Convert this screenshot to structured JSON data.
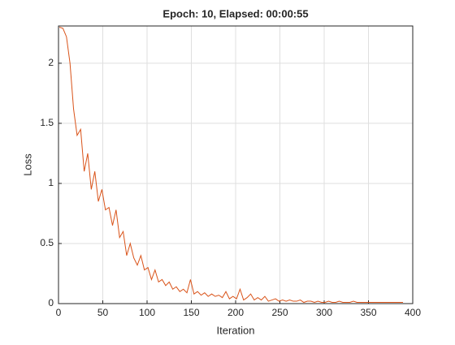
{
  "chart_data": {
    "type": "line",
    "title": "Epoch: 10, Elapsed: 00:00:55",
    "x_label": "Iteration",
    "y_label": "Loss",
    "x": [
      1,
      5,
      9,
      13,
      17,
      21,
      25,
      29,
      33,
      37,
      41,
      45,
      49,
      53,
      57,
      61,
      65,
      69,
      73,
      77,
      81,
      85,
      89,
      93,
      97,
      101,
      105,
      109,
      113,
      117,
      121,
      125,
      129,
      133,
      137,
      141,
      145,
      149,
      153,
      157,
      161,
      165,
      169,
      173,
      177,
      181,
      185,
      189,
      193,
      197,
      201,
      205,
      209,
      213,
      217,
      221,
      225,
      229,
      233,
      237,
      241,
      245,
      249,
      253,
      257,
      261,
      265,
      269,
      273,
      277,
      281,
      285,
      289,
      293,
      297,
      301,
      305,
      309,
      313,
      317,
      321,
      325,
      329,
      333,
      337,
      341,
      345,
      349,
      353,
      357,
      361,
      365,
      369,
      373,
      377,
      381,
      385,
      389
    ],
    "series": [
      {
        "color": "#d95319",
        "values": [
          2.3,
          2.29,
          2.22,
          2.0,
          1.62,
          1.4,
          1.45,
          1.1,
          1.25,
          0.95,
          1.1,
          0.85,
          0.95,
          0.78,
          0.8,
          0.65,
          0.78,
          0.55,
          0.6,
          0.4,
          0.5,
          0.38,
          0.32,
          0.4,
          0.28,
          0.3,
          0.2,
          0.28,
          0.18,
          0.2,
          0.15,
          0.18,
          0.12,
          0.14,
          0.1,
          0.12,
          0.09,
          0.2,
          0.08,
          0.1,
          0.07,
          0.09,
          0.06,
          0.08,
          0.06,
          0.07,
          0.05,
          0.1,
          0.04,
          0.06,
          0.04,
          0.12,
          0.03,
          0.05,
          0.08,
          0.03,
          0.05,
          0.03,
          0.06,
          0.02,
          0.03,
          0.04,
          0.02,
          0.03,
          0.02,
          0.03,
          0.02,
          0.02,
          0.03,
          0.01,
          0.02,
          0.02,
          0.01,
          0.02,
          0.01,
          0.01,
          0.02,
          0.01,
          0.01,
          0.02,
          0.01,
          0.01,
          0.01,
          0.02,
          0.01,
          0.01,
          0.01,
          0.01,
          0.01,
          0.01,
          0.01,
          0.01,
          0.01,
          0.01,
          0.01,
          0.01,
          0.01,
          0.01
        ]
      }
    ],
    "xlim": [
      0,
      400
    ],
    "xticks": [
      0,
      50,
      100,
      150,
      200,
      250,
      300,
      350,
      400
    ],
    "ylim": [
      0,
      2.31
    ],
    "yticks": [
      0,
      0.5,
      1,
      1.5,
      2
    ],
    "grid": true
  }
}
